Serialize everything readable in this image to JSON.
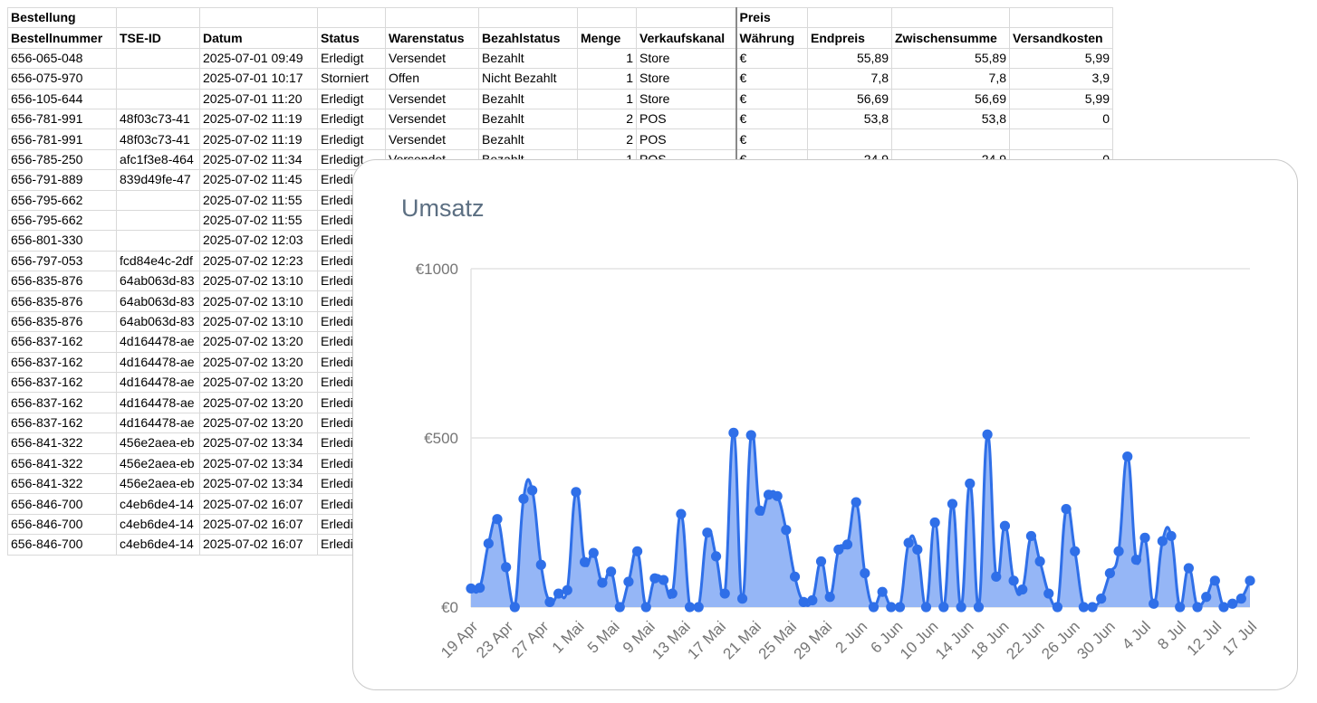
{
  "sheet": {
    "group_headers": [
      "Bestellung",
      "",
      "",
      "",
      "",
      "",
      "",
      "",
      "Preis",
      "",
      "",
      ""
    ],
    "column_headers": [
      "Bestellnummer",
      "TSE-ID",
      "Datum",
      "Status",
      "Warenstatus",
      "Bezahlstatus",
      "Menge",
      "Verkaufskanal",
      "Währung",
      "Endpreis",
      "Zwischensumme",
      "Versandkosten"
    ],
    "rows": [
      [
        "656-065-048",
        "",
        "2025-07-01 09:49",
        "Erledigt",
        "Versendet",
        "Bezahlt",
        "1",
        "Store",
        "€",
        "55,89",
        "55,89",
        "5,99"
      ],
      [
        "656-075-970",
        "",
        "2025-07-01 10:17",
        "Storniert",
        "Offen",
        "Nicht Bezahlt",
        "1",
        "Store",
        "€",
        "7,8",
        "7,8",
        "3,9"
      ],
      [
        "656-105-644",
        "",
        "2025-07-01 11:20",
        "Erledigt",
        "Versendet",
        "Bezahlt",
        "1",
        "Store",
        "€",
        "56,69",
        "56,69",
        "5,99"
      ],
      [
        "656-781-991",
        "48f03c73-41",
        "2025-07-02 11:19",
        "Erledigt",
        "Versendet",
        "Bezahlt",
        "2",
        "POS",
        "€",
        "53,8",
        "53,8",
        "0"
      ],
      [
        "656-781-991",
        "48f03c73-41",
        "2025-07-02 11:19",
        "Erledigt",
        "Versendet",
        "Bezahlt",
        "2",
        "POS",
        "€",
        "",
        "",
        ""
      ],
      [
        "656-785-250",
        "afc1f3e8-464",
        "2025-07-02 11:34",
        "Erledigt",
        "Versendet",
        "Bezahlt",
        "1",
        "POS",
        "€",
        "24,9",
        "24,9",
        "0"
      ],
      [
        "656-791-889",
        "839d49fe-47",
        "2025-07-02 11:45",
        "Erledigt",
        "",
        "",
        "",
        "",
        "",
        "",
        "",
        ""
      ],
      [
        "656-795-662",
        "",
        "2025-07-02 11:55",
        "Erledigt",
        "",
        "",
        "",
        "",
        "",
        "",
        "",
        ""
      ],
      [
        "656-795-662",
        "",
        "2025-07-02 11:55",
        "Erledigt",
        "",
        "",
        "",
        "",
        "",
        "",
        "",
        ""
      ],
      [
        "656-801-330",
        "",
        "2025-07-02 12:03",
        "Erledigt",
        "",
        "",
        "",
        "",
        "",
        "",
        "",
        ""
      ],
      [
        "656-797-053",
        "fcd84e4c-2df",
        "2025-07-02 12:23",
        "Erledigt",
        "",
        "",
        "",
        "",
        "",
        "",
        "",
        ""
      ],
      [
        "656-835-876",
        "64ab063d-83",
        "2025-07-02 13:10",
        "Erledigt",
        "",
        "",
        "",
        "",
        "",
        "",
        "",
        ""
      ],
      [
        "656-835-876",
        "64ab063d-83",
        "2025-07-02 13:10",
        "Erledigt",
        "",
        "",
        "",
        "",
        "",
        "",
        "",
        ""
      ],
      [
        "656-835-876",
        "64ab063d-83",
        "2025-07-02 13:10",
        "Erledigt",
        "",
        "",
        "",
        "",
        "",
        "",
        "",
        ""
      ],
      [
        "656-837-162",
        "4d164478-ae",
        "2025-07-02 13:20",
        "Erledigt",
        "",
        "",
        "",
        "",
        "",
        "",
        "",
        ""
      ],
      [
        "656-837-162",
        "4d164478-ae",
        "2025-07-02 13:20",
        "Erledigt",
        "",
        "",
        "",
        "",
        "",
        "",
        "",
        ""
      ],
      [
        "656-837-162",
        "4d164478-ae",
        "2025-07-02 13:20",
        "Erledigt",
        "",
        "",
        "",
        "",
        "",
        "",
        "",
        ""
      ],
      [
        "656-837-162",
        "4d164478-ae",
        "2025-07-02 13:20",
        "Erledigt",
        "",
        "",
        "",
        "",
        "",
        "",
        "",
        ""
      ],
      [
        "656-837-162",
        "4d164478-ae",
        "2025-07-02 13:20",
        "Erledigt",
        "",
        "",
        "",
        "",
        "",
        "",
        "",
        ""
      ],
      [
        "656-841-322",
        "456e2aea-eb",
        "2025-07-02 13:34",
        "Erledigt",
        "",
        "",
        "",
        "",
        "",
        "",
        "",
        ""
      ],
      [
        "656-841-322",
        "456e2aea-eb",
        "2025-07-02 13:34",
        "Erledigt",
        "",
        "",
        "",
        "",
        "",
        "",
        "",
        ""
      ],
      [
        "656-841-322",
        "456e2aea-eb",
        "2025-07-02 13:34",
        "Erledigt",
        "",
        "",
        "",
        "",
        "",
        "",
        "",
        ""
      ],
      [
        "656-846-700",
        "c4eb6de4-14",
        "2025-07-02 16:07",
        "Erledigt",
        "",
        "",
        "",
        "",
        "",
        "",
        "",
        ""
      ],
      [
        "656-846-700",
        "c4eb6de4-14",
        "2025-07-02 16:07",
        "Erledigt",
        "",
        "",
        "",
        "",
        "",
        "",
        "",
        ""
      ],
      [
        "656-846-700",
        "c4eb6de4-14",
        "2025-07-02 16:07",
        "Erledigt",
        "",
        "",
        "",
        "",
        "",
        "",
        "",
        ""
      ]
    ]
  },
  "chart_data": {
    "type": "area",
    "title": "Umsatz",
    "xlabel": "",
    "ylabel": "",
    "x_start": "2025-04-19",
    "x_end": "2025-07-17",
    "x_tick_labels": [
      "19 Apr",
      "23 Apr",
      "27 Apr",
      "1 Mai",
      "5 Mai",
      "9 Mai",
      "13 Mai",
      "17 Mai",
      "21 Mai",
      "25 Mai",
      "29 Mai",
      "2 Jun",
      "6 Jun",
      "10 Jun",
      "14 Jun",
      "18 Jun",
      "22 Jun",
      "26 Jun",
      "30 Jun",
      "4 Jul",
      "8 Jul",
      "12 Jul",
      "17 Jul"
    ],
    "y_tick_labels": [
      "€0",
      "€500",
      "€1000"
    ],
    "y_ticks": [
      0,
      500,
      1000
    ],
    "ylim": [
      0,
      1000
    ],
    "grid": true,
    "legend": false,
    "series_color": "#2f6fe8",
    "fill_color": "#8fb2f5",
    "values": [
      55,
      57,
      188,
      260,
      118,
      0,
      320,
      345,
      125,
      15,
      40,
      50,
      340,
      133,
      160,
      72,
      105,
      0,
      75,
      165,
      0,
      85,
      80,
      40,
      275,
      0,
      0,
      220,
      150,
      40,
      515,
      25,
      508,
      285,
      332,
      328,
      228,
      90,
      15,
      20,
      135,
      30,
      170,
      185,
      310,
      100,
      0,
      45,
      0,
      0,
      190,
      170,
      0,
      250,
      0,
      305,
      0,
      365,
      0,
      510,
      90,
      240,
      78,
      52,
      210,
      135,
      40,
      0,
      290,
      165,
      0,
      0,
      25,
      100,
      165,
      445,
      140,
      205,
      10,
      195,
      210,
      0,
      115,
      0,
      30,
      78,
      0,
      10,
      25,
      78
    ]
  }
}
